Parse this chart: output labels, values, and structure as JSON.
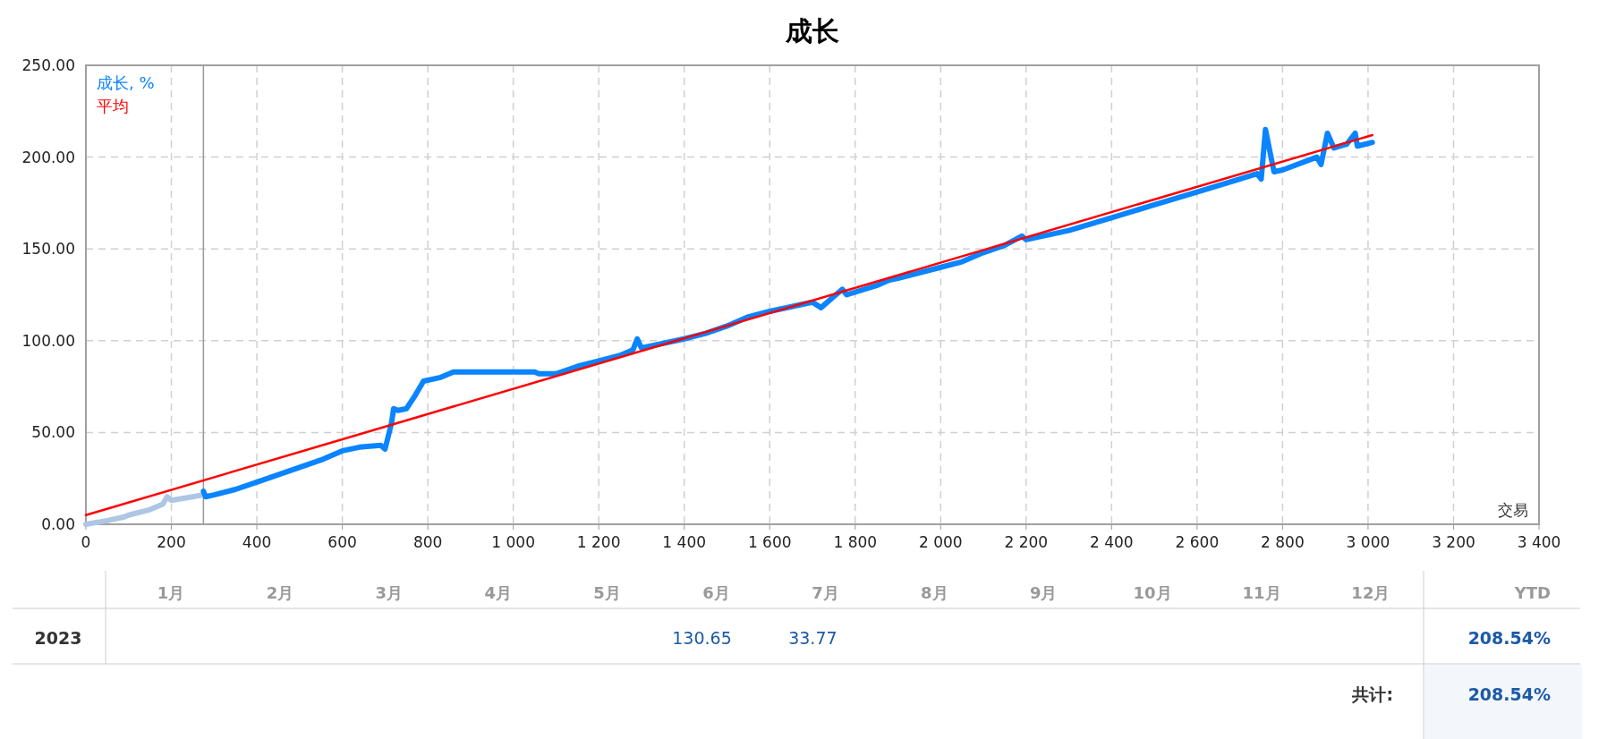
{
  "chart_data": {
    "type": "line",
    "title": "成长",
    "xlabel": "交易",
    "xlim": [
      0,
      3400
    ],
    "ylim": [
      0,
      250
    ],
    "xticks": [
      0,
      200,
      400,
      600,
      800,
      {
        "value": 1000,
        "label": "1 000"
      },
      {
        "value": 1200,
        "label": "1 200"
      },
      {
        "value": 1400,
        "label": "1 400"
      },
      {
        "value": 1600,
        "label": "1 600"
      },
      {
        "value": 1800,
        "label": "1 800"
      },
      {
        "value": 2000,
        "label": "2 000"
      },
      {
        "value": 2200,
        "label": "2 200"
      },
      {
        "value": 2400,
        "label": "2 400"
      },
      {
        "value": 2600,
        "label": "2 600"
      },
      {
        "value": 2800,
        "label": "2 800"
      },
      {
        "value": 3000,
        "label": "3 000"
      },
      {
        "value": 3200,
        "label": "3 200"
      },
      {
        "value": 3400,
        "label": "3 400"
      }
    ],
    "yticks": [
      {
        "value": 0,
        "label": "0.00"
      },
      {
        "value": 50,
        "label": "50.00"
      },
      {
        "value": 100,
        "label": "100.00"
      },
      {
        "value": 150,
        "label": "150.00"
      },
      {
        "value": 200,
        "label": "200.00"
      },
      {
        "value": 250,
        "label": "250.00"
      }
    ],
    "grid": true,
    "legend": "top left",
    "marker": "none",
    "line_style": "solid",
    "series": [
      {
        "color": "#aec6e3",
        "x": [
          0,
          50,
          90,
          100,
          150,
          180,
          190,
          200,
          250,
          275
        ],
        "values": [
          0,
          2,
          4,
          5,
          8,
          11,
          15,
          13,
          15,
          16
        ]
      },
      {
        "name": "成长, %",
        "color": "#0a84ff",
        "x": [
          275,
          280,
          300,
          350,
          400,
          450,
          500,
          550,
          600,
          640,
          690,
          700,
          715,
          720,
          730,
          750,
          770,
          790,
          830,
          860,
          1050,
          1060,
          1100,
          1150,
          1200,
          1250,
          1280,
          1290,
          1300,
          1400,
          1450,
          1500,
          1550,
          1600,
          1700,
          1720,
          1750,
          1770,
          1780,
          1850,
          1880,
          1900,
          2000,
          2050,
          2100,
          2150,
          2190,
          2200,
          2300,
          2400,
          2500,
          2600,
          2700,
          2740,
          2750,
          2760,
          2780,
          2800,
          2880,
          2890,
          2905,
          2920,
          2950,
          2960,
          2970,
          2975,
          3010
        ],
        "values": [
          18,
          15,
          16,
          19,
          23,
          27,
          31,
          35,
          40,
          42,
          43,
          41,
          55,
          63,
          62,
          63,
          70,
          78,
          80,
          83,
          83,
          82,
          82,
          86,
          89,
          92,
          95,
          101,
          96,
          101,
          104,
          108,
          113,
          116,
          121,
          118,
          124,
          128,
          125,
          130,
          133,
          134,
          140,
          143,
          148,
          152,
          157,
          155,
          160,
          167,
          174,
          181,
          188,
          191,
          188,
          215,
          192,
          193,
          200,
          196,
          213,
          205,
          207,
          210,
          213,
          206,
          208
        ]
      },
      {
        "name": "平均",
        "color": "#ff0000",
        "x": [
          0,
          3010
        ],
        "values": [
          5,
          212
        ]
      }
    ],
    "ref_lines": [
      {
        "axis": "x",
        "value": 275,
        "color": "#999999"
      }
    ],
    "annotations": [
      "1月",
      "2月",
      "3月",
      "4月",
      "5月",
      "6月",
      "7月",
      "8月",
      "9月",
      "10月",
      "11月",
      "12月",
      "YTD",
      "2023",
      "130.65",
      "33.77",
      "208.54%",
      "共计:",
      "208.54%"
    ]
  }
}
